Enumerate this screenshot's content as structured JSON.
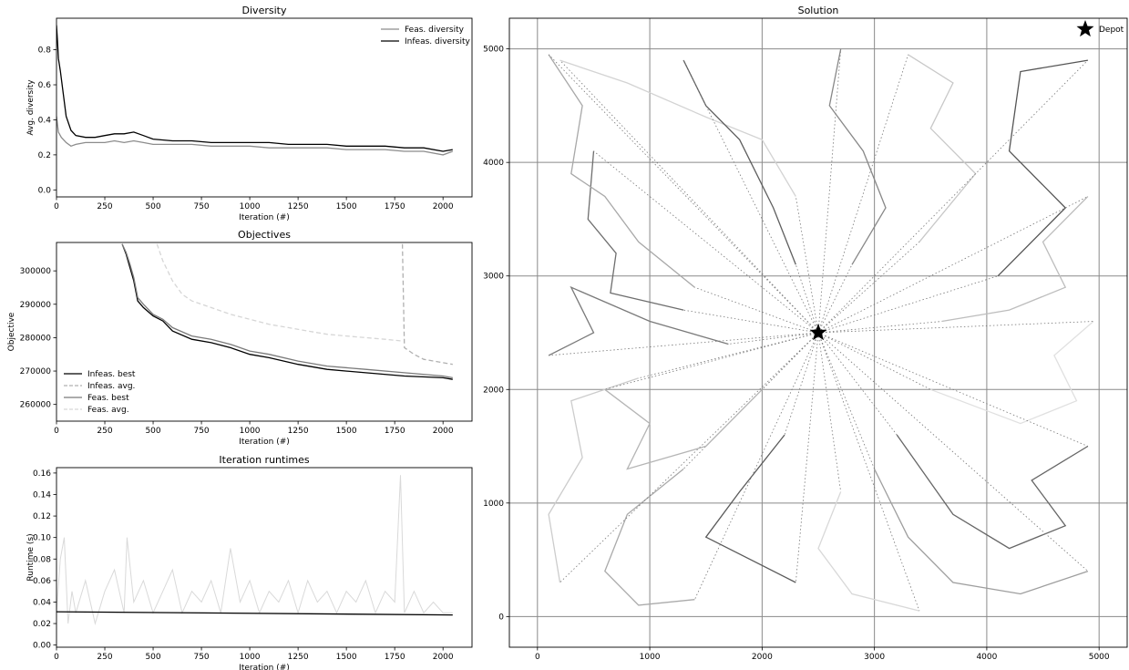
{
  "chart_data": [
    {
      "id": "diversity",
      "type": "line",
      "title": "Diversity",
      "xlabel": "Iteration (#)",
      "ylabel": "Avg. diversity",
      "xlim": [
        0,
        2150
      ],
      "ylim": [
        -0.04,
        0.98
      ],
      "xticks": [
        0,
        250,
        500,
        750,
        1000,
        1250,
        1500,
        1750,
        2000
      ],
      "yticks": [
        0.0,
        0.2,
        0.4,
        0.6,
        0.8
      ],
      "legend": "top-right",
      "series": [
        {
          "name": "Feas. diversity",
          "color": "#8c8c8c",
          "style": "solid",
          "x": [
            0,
            10,
            25,
            50,
            75,
            100,
            150,
            200,
            250,
            300,
            350,
            400,
            450,
            500,
            600,
            700,
            800,
            900,
            1000,
            1100,
            1200,
            1300,
            1400,
            1500,
            1600,
            1700,
            1800,
            1900,
            2000,
            2050
          ],
          "y": [
            0.42,
            0.33,
            0.3,
            0.27,
            0.25,
            0.26,
            0.27,
            0.27,
            0.27,
            0.28,
            0.27,
            0.28,
            0.27,
            0.26,
            0.26,
            0.26,
            0.25,
            0.25,
            0.25,
            0.24,
            0.24,
            0.24,
            0.24,
            0.23,
            0.23,
            0.23,
            0.22,
            0.22,
            0.2,
            0.22
          ]
        },
        {
          "name": "Infeas. diversity",
          "color": "#000000",
          "style": "solid",
          "x": [
            0,
            5,
            10,
            20,
            35,
            50,
            75,
            100,
            150,
            200,
            250,
            300,
            350,
            400,
            450,
            500,
            600,
            700,
            800,
            900,
            1000,
            1100,
            1200,
            1300,
            1400,
            1500,
            1600,
            1700,
            1800,
            1900,
            2000,
            2050
          ],
          "y": [
            0.94,
            0.85,
            0.75,
            0.68,
            0.55,
            0.42,
            0.34,
            0.31,
            0.3,
            0.3,
            0.31,
            0.32,
            0.32,
            0.33,
            0.31,
            0.29,
            0.28,
            0.28,
            0.27,
            0.27,
            0.27,
            0.27,
            0.26,
            0.26,
            0.26,
            0.25,
            0.25,
            0.25,
            0.24,
            0.24,
            0.22,
            0.23
          ]
        }
      ]
    },
    {
      "id": "objectives",
      "type": "line",
      "title": "Objectives",
      "xlabel": "Iteration (#)",
      "ylabel": "Objective",
      "xlim": [
        0,
        2150
      ],
      "ylim": [
        255000,
        308500
      ],
      "xticks": [
        0,
        250,
        500,
        750,
        1000,
        1250,
        1500,
        1750,
        2000
      ],
      "yticks": [
        260000,
        270000,
        280000,
        290000,
        300000
      ],
      "legend": "lower-left",
      "series": [
        {
          "name": "Infeas. best",
          "color": "#000000",
          "style": "solid",
          "x": [
            340,
            360,
            380,
            400,
            420,
            450,
            500,
            550,
            600,
            700,
            800,
            900,
            1000,
            1100,
            1250,
            1400,
            1600,
            1800,
            2000,
            2050
          ],
          "y": [
            308000,
            305000,
            301000,
            297000,
            291000,
            289000,
            286500,
            285000,
            282000,
            279500,
            278500,
            277000,
            275000,
            274000,
            272000,
            270500,
            269500,
            268500,
            268000,
            267500
          ]
        },
        {
          "name": "Infeas. avg.",
          "color": "#b0b0b0",
          "style": "dashed",
          "x": [
            1790,
            1800,
            1850,
            1900,
            2000,
            2050
          ],
          "y": [
            308000,
            277000,
            275000,
            273500,
            272500,
            272000
          ]
        },
        {
          "name": "Feas. best",
          "color": "#7a7a7a",
          "style": "solid",
          "x": [
            340,
            360,
            380,
            400,
            420,
            450,
            500,
            550,
            600,
            700,
            800,
            900,
            1000,
            1100,
            1250,
            1400,
            1600,
            1800,
            2000,
            2050
          ],
          "y": [
            308000,
            305500,
            302000,
            298000,
            292000,
            290000,
            287000,
            285500,
            283000,
            280500,
            279500,
            278000,
            276000,
            275000,
            273000,
            271500,
            270500,
            269500,
            268500,
            268000
          ]
        },
        {
          "name": "Feas. avg.",
          "color": "#d6d6d6",
          "style": "dashed",
          "x": [
            520,
            550,
            600,
            650,
            700,
            800,
            900,
            1000,
            1100,
            1200,
            1300,
            1400,
            1500,
            1600,
            1700,
            1790
          ],
          "y": [
            308000,
            303000,
            297000,
            293000,
            291000,
            289000,
            287000,
            285500,
            284000,
            283000,
            282000,
            281000,
            280500,
            280000,
            279500,
            279000
          ]
        }
      ]
    },
    {
      "id": "runtimes",
      "type": "line",
      "title": "Iteration runtimes",
      "xlabel": "Iteration (#)",
      "ylabel": "Runtime (s)",
      "xlim": [
        0,
        2150
      ],
      "ylim": [
        -0.002,
        0.165
      ],
      "xticks": [
        0,
        250,
        500,
        750,
        1000,
        1250,
        1500,
        1750,
        2000
      ],
      "yticks": [
        0.0,
        0.02,
        0.04,
        0.06,
        0.08,
        0.1,
        0.12,
        0.14,
        0.16
      ],
      "series": [
        {
          "name": "",
          "color": "#d9d9d9",
          "style": "solid",
          "x": [
            0,
            20,
            40,
            60,
            80,
            100,
            150,
            200,
            250,
            300,
            350,
            365,
            400,
            450,
            500,
            550,
            600,
            650,
            700,
            750,
            800,
            850,
            900,
            950,
            1000,
            1050,
            1100,
            1150,
            1200,
            1250,
            1300,
            1350,
            1400,
            1450,
            1500,
            1550,
            1600,
            1650,
            1700,
            1750,
            1780,
            1800,
            1850,
            1900,
            1950,
            2000,
            2050
          ],
          "y": [
            0.03,
            0.08,
            0.1,
            0.02,
            0.05,
            0.03,
            0.06,
            0.02,
            0.05,
            0.07,
            0.03,
            0.1,
            0.04,
            0.06,
            0.03,
            0.05,
            0.07,
            0.03,
            0.05,
            0.04,
            0.06,
            0.03,
            0.09,
            0.04,
            0.06,
            0.03,
            0.05,
            0.04,
            0.06,
            0.03,
            0.06,
            0.04,
            0.05,
            0.03,
            0.05,
            0.04,
            0.06,
            0.03,
            0.05,
            0.04,
            0.158,
            0.03,
            0.05,
            0.03,
            0.04,
            0.03,
            0.03
          ]
        },
        {
          "name": "",
          "color": "#000000",
          "style": "solid",
          "x": [
            0,
            2050
          ],
          "y": [
            0.031,
            0.028
          ]
        }
      ]
    },
    {
      "id": "solution",
      "type": "scatter",
      "title": "Solution",
      "xlim": [
        -250,
        5250
      ],
      "ylim": [
        -270,
        5270
      ],
      "xticks": [
        0,
        1000,
        2000,
        3000,
        4000,
        5000
      ],
      "yticks": [
        0,
        1000,
        2000,
        3000,
        4000,
        5000
      ],
      "grid": true,
      "legend": "top-right",
      "depot": {
        "name": "Depot",
        "x": 2500,
        "y": 2500
      },
      "routes": [
        {
          "color": "#6e6e6e",
          "points": [
            [
              500,
              4100
            ],
            [
              450,
              3500
            ],
            [
              700,
              3200
            ],
            [
              650,
              2850
            ],
            [
              1300,
              2700
            ],
            [
              2500,
              2500
            ]
          ]
        },
        {
          "color": "#a8a8a8",
          "points": [
            [
              100,
              4950
            ],
            [
              400,
              4500
            ],
            [
              300,
              3900
            ],
            [
              600,
              3700
            ],
            [
              900,
              3300
            ],
            [
              1400,
              2900
            ],
            [
              2500,
              2500
            ]
          ]
        },
        {
          "color": "#d3d3d3",
          "points": [
            [
              200,
              4900
            ],
            [
              800,
              4700
            ],
            [
              1500,
              4400
            ],
            [
              2000,
              4200
            ],
            [
              2300,
              3700
            ],
            [
              2500,
              2500
            ]
          ]
        },
        {
          "color": "#5e5e5e",
          "points": [
            [
              1300,
              4900
            ],
            [
              1500,
              4500
            ],
            [
              1800,
              4200
            ],
            [
              2100,
              3600
            ],
            [
              2300,
              3100
            ],
            [
              2500,
              2500
            ]
          ]
        },
        {
          "color": "#888888",
          "points": [
            [
              2700,
              5000
            ],
            [
              2600,
              4500
            ],
            [
              2900,
              4100
            ],
            [
              3100,
              3600
            ],
            [
              2800,
              3100
            ],
            [
              2500,
              2500
            ]
          ]
        },
        {
          "color": "#c8c8c8",
          "points": [
            [
              3300,
              4950
            ],
            [
              3700,
              4700
            ],
            [
              3500,
              4300
            ],
            [
              3900,
              3900
            ],
            [
              3400,
              3300
            ],
            [
              2500,
              2500
            ]
          ]
        },
        {
          "color": "#555555",
          "points": [
            [
              4900,
              4900
            ],
            [
              4300,
              4800
            ],
            [
              4200,
              4100
            ],
            [
              4700,
              3600
            ],
            [
              4100,
              3000
            ],
            [
              2500,
              2500
            ]
          ]
        },
        {
          "color": "#bdbdbd",
          "points": [
            [
              4900,
              3700
            ],
            [
              4500,
              3300
            ],
            [
              4700,
              2900
            ],
            [
              4200,
              2700
            ],
            [
              3600,
              2600
            ],
            [
              2500,
              2500
            ]
          ]
        },
        {
          "color": "#e0e0e0",
          "points": [
            [
              4950,
              2600
            ],
            [
              4600,
              2300
            ],
            [
              4800,
              1900
            ],
            [
              4300,
              1700
            ],
            [
              3500,
              2000
            ],
            [
              2500,
              2500
            ]
          ]
        },
        {
          "color": "#666666",
          "points": [
            [
              4900,
              1500
            ],
            [
              4400,
              1200
            ],
            [
              4700,
              800
            ],
            [
              4200,
              600
            ],
            [
              3700,
              900
            ],
            [
              3200,
              1600
            ],
            [
              2500,
              2500
            ]
          ]
        },
        {
          "color": "#9e9e9e",
          "points": [
            [
              4900,
              400
            ],
            [
              4300,
              200
            ],
            [
              3700,
              300
            ],
            [
              3300,
              700
            ],
            [
              3000,
              1300
            ],
            [
              2500,
              2500
            ]
          ]
        },
        {
          "color": "#d8d8d8",
          "points": [
            [
              3400,
              50
            ],
            [
              2800,
              200
            ],
            [
              2500,
              600
            ],
            [
              2700,
              1100
            ],
            [
              2500,
              2500
            ]
          ]
        },
        {
          "color": "#5a5a5a",
          "points": [
            [
              2300,
              300
            ],
            [
              1900,
              500
            ],
            [
              1500,
              700
            ],
            [
              1800,
              1100
            ],
            [
              2200,
              1600
            ],
            [
              2500,
              2500
            ]
          ]
        },
        {
          "color": "#aaaaaa",
          "points": [
            [
              1400,
              150
            ],
            [
              900,
              100
            ],
            [
              600,
              400
            ],
            [
              800,
              900
            ],
            [
              1300,
              1300
            ],
            [
              2500,
              2500
            ]
          ]
        },
        {
          "color": "#cccccc",
          "points": [
            [
              200,
              300
            ],
            [
              100,
              900
            ],
            [
              400,
              1400
            ],
            [
              300,
              1900
            ],
            [
              900,
              2100
            ],
            [
              2500,
              2500
            ]
          ]
        },
        {
          "color": "#7a7a7a",
          "points": [
            [
              100,
              2300
            ],
            [
              500,
              2500
            ],
            [
              300,
              2900
            ],
            [
              1000,
              2600
            ],
            [
              1700,
              2400
            ],
            [
              2500,
              2500
            ]
          ]
        },
        {
          "color": "#b5b5b5",
          "points": [
            [
              600,
              2000
            ],
            [
              1000,
              1700
            ],
            [
              800,
              1300
            ],
            [
              1500,
              1500
            ],
            [
              2000,
              2000
            ],
            [
              2500,
              2500
            ]
          ]
        }
      ]
    }
  ]
}
